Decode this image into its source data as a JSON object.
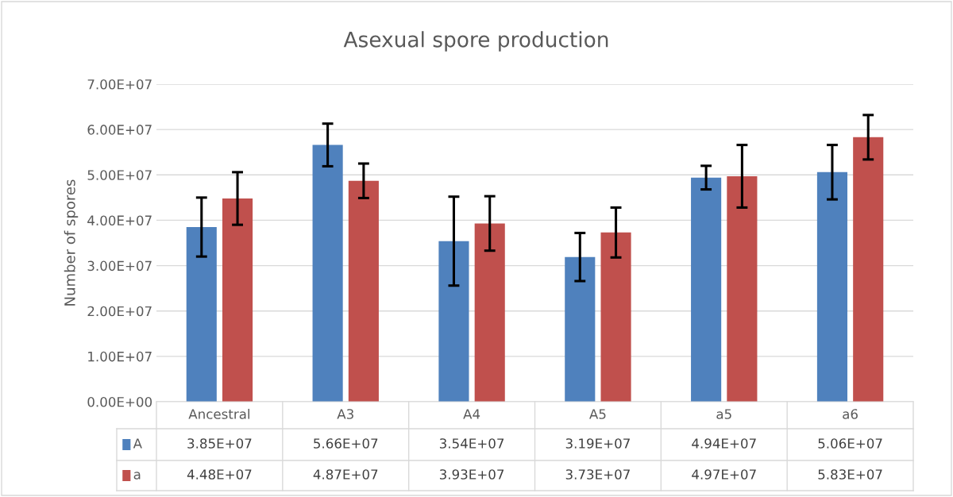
{
  "chart_data": {
    "type": "bar",
    "title": "Asexual spore production",
    "ylabel": "Number of spores",
    "categories": [
      "Ancestral",
      "A3",
      "A4",
      "A5",
      "a5",
      "a6"
    ],
    "series": [
      {
        "name": "A",
        "color": "#4f81bd",
        "values": [
          38500000,
          56600000,
          35400000,
          31900000,
          49400000,
          50600000
        ],
        "errors": [
          6500000,
          4700000,
          9800000,
          5300000,
          2600000,
          6000000
        ],
        "value_labels": [
          "3.85E+07",
          "5.66E+07",
          "3.54E+07",
          "3.19E+07",
          "4.94E+07",
          "5.06E+07"
        ]
      },
      {
        "name": "a",
        "color": "#c0504d",
        "values": [
          44800000,
          48700000,
          39300000,
          37300000,
          49700000,
          58300000
        ],
        "errors": [
          5800000,
          3800000,
          6000000,
          5500000,
          6900000,
          4900000
        ],
        "value_labels": [
          "4.48E+07",
          "4.87E+07",
          "3.93E+07",
          "3.73E+07",
          "4.97E+07",
          "5.83E+07"
        ]
      }
    ],
    "ylim": [
      0,
      70000000
    ],
    "yticks": [
      {
        "value": 0,
        "label": "0.00E+00"
      },
      {
        "value": 10000000,
        "label": "1.00E+07"
      },
      {
        "value": 20000000,
        "label": "2.00E+07"
      },
      {
        "value": 30000000,
        "label": "3.00E+07"
      },
      {
        "value": 40000000,
        "label": "4.00E+07"
      },
      {
        "value": 50000000,
        "label": "5.00E+07"
      },
      {
        "value": 60000000,
        "label": "6.00E+07"
      },
      {
        "value": 70000000,
        "label": "7.00E+07"
      }
    ],
    "grid": "y",
    "legend": "bottom"
  }
}
